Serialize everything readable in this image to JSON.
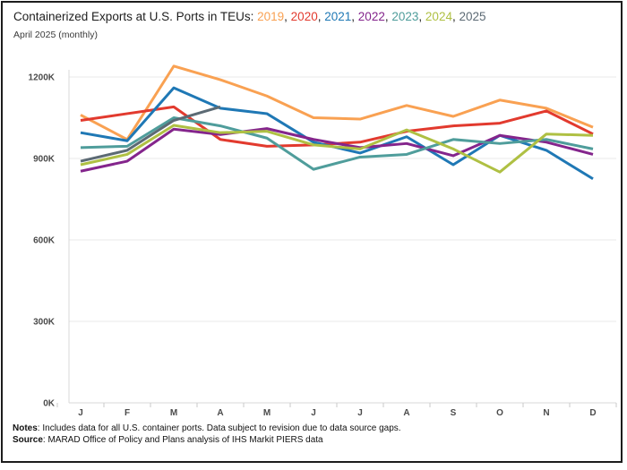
{
  "title": {
    "prefix": "Containerized Exports at U.S. Ports in TEUs: ",
    "separator": ", ",
    "subtitle": "April 2025 (monthly)"
  },
  "notes": {
    "notes_label": "Notes",
    "notes_text": ": Includes data for all U.S. container ports. Data subject to revision due to data source gaps.",
    "source_label": "Source",
    "source_text": ": MARAD Office of Policy and Plans analysis of IHS Markit PIERS data"
  },
  "chart_data": {
    "type": "line",
    "x": [
      "J",
      "F",
      "M",
      "A",
      "M",
      "J",
      "J",
      "A",
      "S",
      "O",
      "N",
      "D"
    ],
    "yticks": [
      0,
      300,
      600,
      900,
      1200
    ],
    "ytick_suffix": "K",
    "ylim_thousands": [
      0,
      1200
    ],
    "values_unit": "thousands of TEUs",
    "grid": true,
    "legend": "years shown inline in title",
    "series": [
      {
        "name": "2019",
        "color": "#F9A152",
        "values": [
          1060,
          970,
          1240,
          1190,
          1130,
          1050,
          1045,
          1095,
          1055,
          1115,
          1085,
          1015
        ]
      },
      {
        "name": "2020",
        "color": "#E23A2E",
        "values": [
          1040,
          1065,
          1090,
          970,
          945,
          950,
          960,
          1000,
          1020,
          1030,
          1075,
          990
        ]
      },
      {
        "name": "2021",
        "color": "#1F78B5",
        "values": [
          995,
          965,
          1160,
          1085,
          1065,
          960,
          920,
          980,
          877,
          985,
          930,
          825
        ]
      },
      {
        "name": "2022",
        "color": "#84258C",
        "values": [
          853,
          890,
          1008,
          988,
          1010,
          970,
          940,
          955,
          910,
          985,
          960,
          915
        ]
      },
      {
        "name": "2023",
        "color": "#4F9D9B",
        "values": [
          940,
          945,
          1050,
          1020,
          975,
          860,
          905,
          915,
          970,
          955,
          970,
          935
        ]
      },
      {
        "name": "2024",
        "color": "#AFC043",
        "values": [
          877,
          915,
          1022,
          995,
          1000,
          950,
          935,
          1005,
          935,
          850,
          990,
          985
        ]
      },
      {
        "name": "2025",
        "color": "#5C6A74",
        "values": [
          890,
          930,
          1040,
          1090
        ]
      }
    ]
  }
}
